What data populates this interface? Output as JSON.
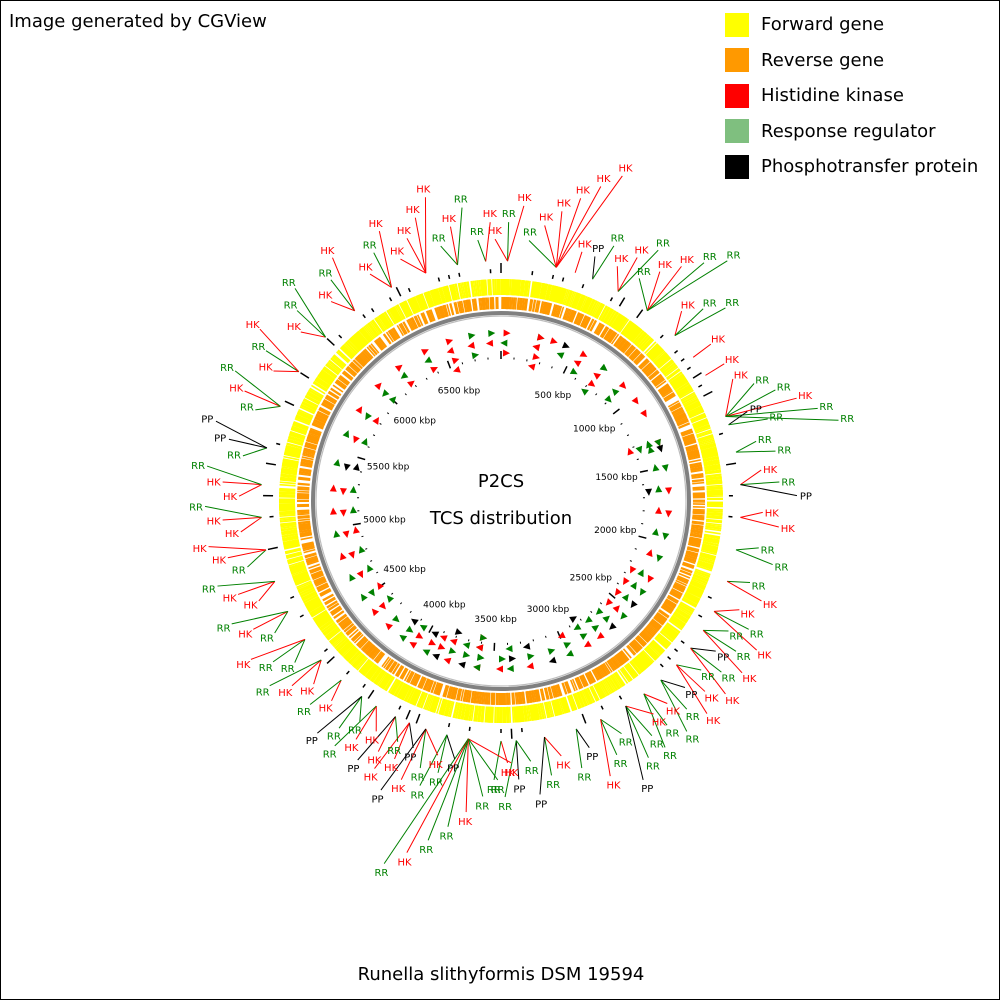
{
  "credit": "Image generated by CGView",
  "legend": [
    {
      "label": "Forward gene",
      "color": "#ffff00"
    },
    {
      "label": "Reverse gene",
      "color": "#ff9900"
    },
    {
      "label": "Histidine kinase",
      "color": "#ff0000"
    },
    {
      "label": "Response regulator",
      "color": "#7fbf7f"
    },
    {
      "label": "Phosphotransfer protein",
      "color": "#000000"
    }
  ],
  "center": {
    "title": "P2CS",
    "subtitle": "TCS distribution"
  },
  "organism": "Runella slithyformis DSM 19594",
  "ruler_labels": [
    "500 kbp",
    "1000 kbp",
    "1500 kbp",
    "2000 kbp",
    "2500 kbp",
    "3000 kbp",
    "3500 kbp",
    "4000 kbp",
    "4500 kbp",
    "5000 kbp",
    "5500 kbp",
    "6000 kbp",
    "6500 kbp"
  ],
  "genome_length_kbp": 6900,
  "colors": {
    "HK": "#ff0000",
    "RR": "#008000",
    "PP": "#000000",
    "forward": "#ffff00",
    "reverse": "#ff9900",
    "backbone": "#808080"
  },
  "feature_codes": {
    "HK": "HK",
    "RR": "RR",
    "PP": "PP"
  },
  "features": [
    {
      "kbp": 30,
      "labels": [
        "HK",
        "RR",
        "HK"
      ]
    },
    {
      "kbp": 255,
      "labels": [
        "RR",
        "HK",
        "HK",
        "HK",
        "HK",
        "HK"
      ]
    },
    {
      "kbp": 345,
      "labels": [
        "HK"
      ]
    },
    {
      "kbp": 430,
      "labels": [
        "PP",
        "RR"
      ]
    },
    {
      "kbp": 560,
      "labels": [
        "HK",
        "HK",
        "RR"
      ]
    },
    {
      "kbp": 720,
      "labels": [
        "RR",
        "HK",
        "HK",
        "RR",
        "RR"
      ]
    },
    {
      "kbp": 890,
      "labels": [
        "HK",
        "RR",
        "RR"
      ]
    },
    {
      "kbp": 1020,
      "labels": [
        "HK"
      ]
    },
    {
      "kbp": 1120,
      "labels": [
        "HK"
      ]
    },
    {
      "kbp": 1330,
      "labels": [
        "HK",
        "RR",
        "RR",
        "HK",
        "RR",
        "RR"
      ]
    },
    {
      "kbp": 1370,
      "labels": [
        "PP",
        "RR"
      ]
    },
    {
      "kbp": 1500,
      "labels": [
        "RR",
        "RR"
      ]
    },
    {
      "kbp": 1650,
      "labels": [
        "HK",
        "RR",
        "PP"
      ]
    },
    {
      "kbp": 1800,
      "labels": [
        "HK",
        "HK"
      ]
    },
    {
      "kbp": 1950,
      "labels": [
        "RR",
        "RR"
      ]
    },
    {
      "kbp": 2100,
      "labels": [
        "RR",
        "HK"
      ]
    },
    {
      "kbp": 2250,
      "labels": [
        "HK",
        "RR",
        "HK"
      ]
    },
    {
      "kbp": 2350,
      "labels": [
        "RR",
        "RR",
        "HK"
      ]
    },
    {
      "kbp": 2450,
      "labels": [
        "PP",
        "RR",
        "HK"
      ]
    },
    {
      "kbp": 2550,
      "labels": [
        "RR",
        "HK",
        "HK"
      ]
    },
    {
      "kbp": 2650,
      "labels": [
        "PP",
        "RR",
        "RR"
      ]
    },
    {
      "kbp": 2750,
      "labels": [
        "HK",
        "RR",
        "RR"
      ]
    },
    {
      "kbp": 2850,
      "labels": [
        "HK",
        "RR",
        "RR",
        "PP"
      ]
    },
    {
      "kbp": 2980,
      "labels": [
        "RR",
        "RR",
        "HK"
      ]
    },
    {
      "kbp": 3100,
      "labels": [
        "PP",
        "RR"
      ]
    },
    {
      "kbp": 3250,
      "labels": [
        "HK",
        "RR",
        "PP"
      ]
    },
    {
      "kbp": 3380,
      "labels": [
        "RR",
        "PP",
        "RR"
      ]
    },
    {
      "kbp": 3450,
      "labels": [
        "HK",
        "RR"
      ]
    },
    {
      "kbp": 3600,
      "labels": [
        "HK",
        "RR",
        "RR",
        "HK",
        "RR",
        "RR",
        "HK",
        "RR"
      ]
    },
    {
      "kbp": 3700,
      "labels": [
        "PP",
        "RR",
        "RR"
      ]
    },
    {
      "kbp": 3800,
      "labels": [
        "HK",
        "RR",
        "HK",
        "PP"
      ]
    },
    {
      "kbp": 3880,
      "labels": [
        "PP",
        "HK",
        "HK"
      ]
    },
    {
      "kbp": 3950,
      "labels": [
        "RR",
        "HK",
        "PP"
      ]
    },
    {
      "kbp": 4050,
      "labels": [
        "HK",
        "HK",
        "RR"
      ]
    },
    {
      "kbp": 4130,
      "labels": [
        "RR",
        "RR",
        "PP"
      ]
    },
    {
      "kbp": 4250,
      "labels": [
        "HK",
        "RR"
      ]
    },
    {
      "kbp": 4380,
      "labels": [
        "HK",
        "HK",
        "RR"
      ]
    },
    {
      "kbp": 4500,
      "labels": [
        "RR",
        "RR",
        "HK"
      ]
    },
    {
      "kbp": 4650,
      "labels": [
        "RR",
        "HK",
        "RR"
      ]
    },
    {
      "kbp": 4800,
      "labels": [
        "HK",
        "HK",
        "RR"
      ]
    },
    {
      "kbp": 4950,
      "labels": [
        "RR",
        "HK",
        "HK"
      ]
    },
    {
      "kbp": 5100,
      "labels": [
        "HK",
        "HK",
        "RR"
      ]
    },
    {
      "kbp": 5250,
      "labels": [
        "HK",
        "HK",
        "RR"
      ]
    },
    {
      "kbp": 5420,
      "labels": [
        "RR",
        "PP",
        "PP"
      ]
    },
    {
      "kbp": 5620,
      "labels": [
        "RR",
        "HK",
        "RR"
      ]
    },
    {
      "kbp": 5800,
      "labels": [
        "HK",
        "RR",
        "HK"
      ]
    },
    {
      "kbp": 6000,
      "labels": [
        "HK",
        "RR",
        "RR"
      ]
    },
    {
      "kbp": 6180,
      "labels": [
        "HK",
        "RR",
        "HK"
      ]
    },
    {
      "kbp": 6380,
      "labels": [
        "HK",
        "RR",
        "HK"
      ]
    },
    {
      "kbp": 6550,
      "labels": [
        "HK",
        "HK",
        "HK",
        "HK"
      ]
    },
    {
      "kbp": 6700,
      "labels": [
        "RR",
        "HK",
        "RR"
      ]
    },
    {
      "kbp": 6830,
      "labels": [
        "RR",
        "HK"
      ]
    }
  ]
}
